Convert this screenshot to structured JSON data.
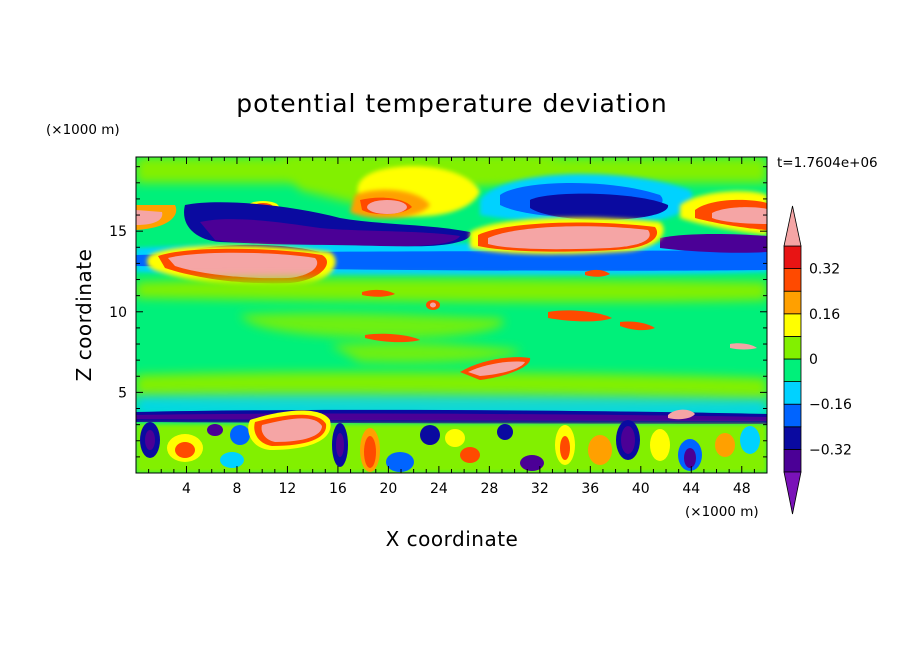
{
  "chart_data": {
    "type": "heatmap",
    "title": "potential temperature deviation",
    "xlabel": "X coordinate",
    "ylabel": "Z coordinate",
    "x_unit": "(×1000 m)",
    "y_unit": "(×1000 m)",
    "time_label": "t=1.7604e+06",
    "xlim": [
      0,
      50
    ],
    "ylim": [
      0,
      19.6
    ],
    "x_ticks": [
      4,
      8,
      12,
      16,
      20,
      24,
      28,
      32,
      36,
      40,
      44,
      48
    ],
    "x_tick_labels": [
      "4",
      "8",
      "12",
      "16",
      "20",
      "24",
      "28",
      "32",
      "36",
      "40",
      "44",
      "48"
    ],
    "y_ticks": [
      5,
      10,
      15
    ],
    "y_tick_labels": [
      "5",
      "10",
      "15"
    ],
    "colorbar": {
      "levels": [
        -0.4,
        -0.32,
        -0.24,
        -0.16,
        -0.08,
        0,
        0.08,
        0.16,
        0.24,
        0.32,
        0.4
      ],
      "tick_values": [
        0.32,
        0.16,
        0,
        -0.16,
        -0.32
      ],
      "tick_labels": [
        "0.32",
        "0.16",
        "0",
        "−0.16",
        "−0.32"
      ],
      "colors": [
        "#7a12b8",
        "#4b0096",
        "#0a0aa0",
        "#0064ff",
        "#00d2ff",
        "#00f07a",
        "#82f000",
        "#ffff00",
        "#ffa000",
        "#ff4a00",
        "#e81414",
        "#f5a5a5"
      ]
    },
    "background_color": "#00f07a",
    "features": [
      {
        "x": [
          0,
          50
        ],
        "z": [
          18.2,
          19.6
        ],
        "value": 0.04
      },
      {
        "x": [
          20,
          36
        ],
        "z": [
          13.5,
          19.6
        ],
        "value": 0.04
      },
      {
        "x": [
          0,
          50
        ],
        "z": [
          11.5,
          14.5
        ],
        "value": 0.05
      },
      {
        "x": [
          0,
          50
        ],
        "z": [
          0,
          3.6
        ],
        "value": 0.02
      },
      {
        "x": [
          27.5,
          41
        ],
        "z": [
          16.0,
          18.1
        ],
        "value": -0.18
      },
      {
        "x": [
          30,
          39.5
        ],
        "z": [
          16.1,
          17.2
        ],
        "value": -0.34
      },
      {
        "x": [
          1.5,
          16
        ],
        "z": [
          14.5,
          17.0
        ],
        "value": -0.36
      },
      {
        "x": [
          15,
          28
        ],
        "z": [
          14.0,
          15.8
        ],
        "value": -0.36
      },
      {
        "x": [
          36,
          50
        ],
        "z": [
          13.6,
          14.6
        ],
        "value": -0.3
      },
      {
        "x": [
          0,
          50
        ],
        "z": [
          12.8,
          13.8
        ],
        "value": -0.14
      },
      {
        "x": [
          3,
          14.5
        ],
        "z": [
          12.5,
          14.5
        ],
        "value": 0.42
      },
      {
        "x": [
          28,
          39.5
        ],
        "z": [
          14.3,
          15.6
        ],
        "value": 0.44
      },
      {
        "x": [
          17.5,
          21
        ],
        "z": [
          16.5,
          17.5
        ],
        "value": 0.42
      },
      {
        "x": [
          45,
          50
        ],
        "z": [
          15.5,
          16.5
        ],
        "value": 0.42
      },
      {
        "x": [
          0,
          2
        ],
        "z": [
          15.8,
          16.6
        ],
        "value": 0.42
      },
      {
        "x": [
          9.5,
          15
        ],
        "z": [
          1.8,
          3.9
        ],
        "value": 0.42
      },
      {
        "x": [
          27,
          31.5
        ],
        "z": [
          6.0,
          7.2
        ],
        "value": 0.42
      },
      {
        "x": [
          23.5,
          24.5
        ],
        "z": [
          10.2,
          11.0
        ],
        "value": 0.4
      },
      {
        "x": [
          0,
          50
        ],
        "z": [
          3.3,
          3.9
        ],
        "value": -0.28
      },
      {
        "x": [
          38,
          41.5
        ],
        "z": [
          0.2,
          3.2
        ],
        "value": -0.35
      },
      {
        "x": [
          30,
          33
        ],
        "z": [
          0.2,
          1.0
        ],
        "value": -0.3
      }
    ]
  }
}
